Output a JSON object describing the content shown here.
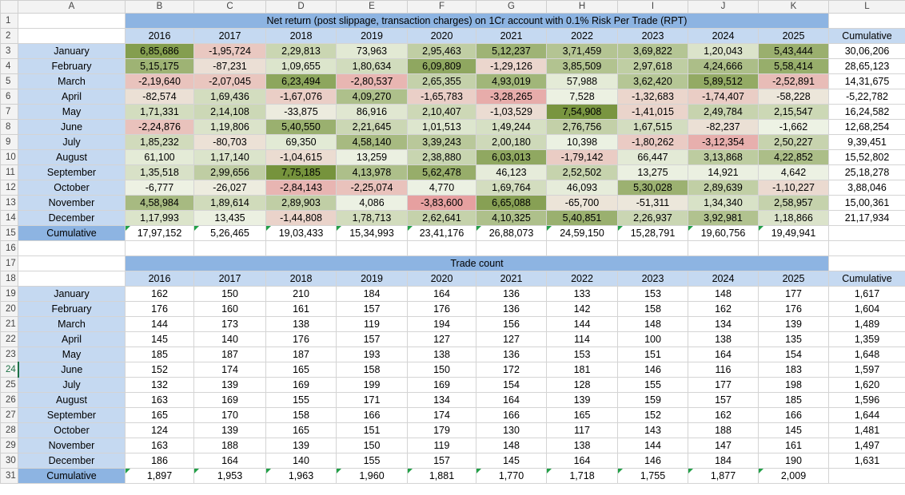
{
  "sheet": {
    "columns": [
      "A",
      "B",
      "C",
      "D",
      "E",
      "F",
      "G",
      "H",
      "I",
      "J",
      "K",
      "L"
    ],
    "row_numbers": [
      1,
      2,
      3,
      4,
      5,
      6,
      7,
      8,
      9,
      10,
      11,
      12,
      13,
      14,
      15,
      16,
      17,
      18,
      19,
      20,
      21,
      22,
      23,
      24,
      25,
      26,
      27,
      28,
      29,
      30,
      31
    ],
    "selected_row": 24
  },
  "net_return": {
    "title": "Net return (post slippage, transaction charges) on 1Cr account with 0.1% Risk Per Trade (RPT)",
    "years": [
      "2016",
      "2017",
      "2018",
      "2019",
      "2020",
      "2021",
      "2022",
      "2023",
      "2024",
      "2025"
    ],
    "cumulative_header": "Cumulative",
    "rows": [
      {
        "month": "January",
        "values": [
          "6,85,686",
          "-1,95,724",
          "2,29,813",
          "73,963",
          "2,95,463",
          "5,12,237",
          "3,71,459",
          "3,69,822",
          "1,20,043",
          "5,43,444"
        ],
        "cumulative": "30,06,206"
      },
      {
        "month": "February",
        "values": [
          "5,15,175",
          "-87,231",
          "1,09,655",
          "1,80,634",
          "6,09,809",
          "-1,29,126",
          "3,85,509",
          "2,97,618",
          "4,24,666",
          "5,58,414"
        ],
        "cumulative": "28,65,123"
      },
      {
        "month": "March",
        "values": [
          "-2,19,640",
          "-2,07,045",
          "6,23,494",
          "-2,80,537",
          "2,65,355",
          "4,93,019",
          "57,988",
          "3,62,420",
          "5,89,512",
          "-2,52,891"
        ],
        "cumulative": "14,31,675"
      },
      {
        "month": "April",
        "values": [
          "-82,574",
          "1,69,436",
          "-1,67,076",
          "4,09,270",
          "-1,65,783",
          "-3,28,265",
          "7,528",
          "-1,32,683",
          "-1,74,407",
          "-58,228"
        ],
        "cumulative": "-5,22,782"
      },
      {
        "month": "May",
        "values": [
          "1,71,331",
          "2,14,108",
          "-33,875",
          "86,916",
          "2,10,407",
          "-1,03,529",
          "7,54,908",
          "-1,41,015",
          "2,49,784",
          "2,15,547"
        ],
        "cumulative": "16,24,582"
      },
      {
        "month": "June",
        "values": [
          "-2,24,876",
          "1,19,806",
          "5,40,550",
          "2,21,645",
          "1,01,513",
          "1,49,244",
          "2,76,756",
          "1,67,515",
          "-82,237",
          "-1,662"
        ],
        "cumulative": "12,68,254"
      },
      {
        "month": "July",
        "values": [
          "1,85,232",
          "-80,703",
          "69,350",
          "4,58,140",
          "3,39,243",
          "2,00,180",
          "10,398",
          "-1,80,262",
          "-3,12,354",
          "2,50,227"
        ],
        "cumulative": "9,39,451"
      },
      {
        "month": "August",
        "values": [
          "61,100",
          "1,17,140",
          "-1,04,615",
          "13,259",
          "2,38,880",
          "6,03,013",
          "-1,79,142",
          "66,447",
          "3,13,868",
          "4,22,852"
        ],
        "cumulative": "15,52,802"
      },
      {
        "month": "September",
        "values": [
          "1,35,518",
          "2,99,656",
          "7,75,185",
          "4,13,978",
          "5,62,478",
          "46,123",
          "2,52,502",
          "13,275",
          "14,921",
          "4,642"
        ],
        "cumulative": "25,18,278"
      },
      {
        "month": "October",
        "values": [
          "-6,777",
          "-26,027",
          "-2,84,143",
          "-2,25,074",
          "4,770",
          "1,69,764",
          "46,093",
          "5,30,028",
          "2,89,639",
          "-1,10,227"
        ],
        "cumulative": "3,88,046"
      },
      {
        "month": "November",
        "values": [
          "4,58,984",
          "1,89,614",
          "2,89,903",
          "4,086",
          "-3,83,600",
          "6,65,088",
          "-65,700",
          "-51,311",
          "1,34,340",
          "2,58,957"
        ],
        "cumulative": "15,00,361"
      },
      {
        "month": "December",
        "values": [
          "1,17,993",
          "13,435",
          "-1,44,808",
          "1,78,713",
          "2,62,641",
          "4,10,325",
          "5,40,851",
          "2,26,937",
          "3,92,981",
          "1,18,866"
        ],
        "cumulative": "21,17,934"
      }
    ],
    "cumulative_label": "Cumulative",
    "cumulative_row": [
      "17,97,152",
      "5,26,465",
      "19,03,433",
      "15,34,993",
      "23,41,176",
      "26,88,073",
      "24,59,150",
      "15,28,791",
      "19,60,756",
      "19,49,941"
    ]
  },
  "trade_count": {
    "title": "Trade count",
    "years": [
      "2016",
      "2017",
      "2018",
      "2019",
      "2020",
      "2021",
      "2022",
      "2023",
      "2024",
      "2025"
    ],
    "cumulative_header": "Cumulative",
    "rows": [
      {
        "month": "January",
        "values": [
          "162",
          "150",
          "210",
          "184",
          "164",
          "136",
          "133",
          "153",
          "148",
          "177"
        ],
        "cumulative": "1,617"
      },
      {
        "month": "February",
        "values": [
          "176",
          "160",
          "161",
          "157",
          "176",
          "136",
          "142",
          "158",
          "162",
          "176"
        ],
        "cumulative": "1,604"
      },
      {
        "month": "March",
        "values": [
          "144",
          "173",
          "138",
          "119",
          "194",
          "156",
          "144",
          "148",
          "134",
          "139"
        ],
        "cumulative": "1,489"
      },
      {
        "month": "April",
        "values": [
          "145",
          "140",
          "176",
          "157",
          "127",
          "127",
          "114",
          "100",
          "138",
          "135"
        ],
        "cumulative": "1,359"
      },
      {
        "month": "May",
        "values": [
          "185",
          "187",
          "187",
          "193",
          "138",
          "136",
          "153",
          "151",
          "164",
          "154"
        ],
        "cumulative": "1,648"
      },
      {
        "month": "June",
        "values": [
          "152",
          "174",
          "165",
          "158",
          "150",
          "172",
          "181",
          "146",
          "116",
          "183"
        ],
        "cumulative": "1,597"
      },
      {
        "month": "July",
        "values": [
          "132",
          "139",
          "169",
          "199",
          "169",
          "154",
          "128",
          "155",
          "177",
          "198"
        ],
        "cumulative": "1,620"
      },
      {
        "month": "August",
        "values": [
          "163",
          "169",
          "155",
          "171",
          "134",
          "164",
          "139",
          "159",
          "157",
          "185"
        ],
        "cumulative": "1,596"
      },
      {
        "month": "September",
        "values": [
          "165",
          "170",
          "158",
          "166",
          "174",
          "166",
          "165",
          "152",
          "162",
          "166"
        ],
        "cumulative": "1,644"
      },
      {
        "month": "October",
        "values": [
          "124",
          "139",
          "165",
          "151",
          "179",
          "130",
          "117",
          "143",
          "188",
          "145"
        ],
        "cumulative": "1,481"
      },
      {
        "month": "November",
        "values": [
          "163",
          "188",
          "139",
          "150",
          "119",
          "148",
          "138",
          "144",
          "147",
          "161"
        ],
        "cumulative": "1,497"
      },
      {
        "month": "December",
        "values": [
          "186",
          "164",
          "140",
          "155",
          "157",
          "145",
          "164",
          "146",
          "184",
          "190"
        ],
        "cumulative": "1,631"
      }
    ],
    "cumulative_label": "Cumulative",
    "cumulative_row": [
      "1,897",
      "1,953",
      "1,963",
      "1,960",
      "1,881",
      "1,770",
      "1,718",
      "1,755",
      "1,877",
      "2,009"
    ]
  },
  "colors": {
    "header_blue": "#8db4e2",
    "light_blue": "#c5d9f1",
    "green_max": "#76933c",
    "red_max": "#e6a0a0",
    "neutral": "#edf2e4",
    "grid": "#d4d4d4",
    "selected_row": "#1e7145"
  }
}
